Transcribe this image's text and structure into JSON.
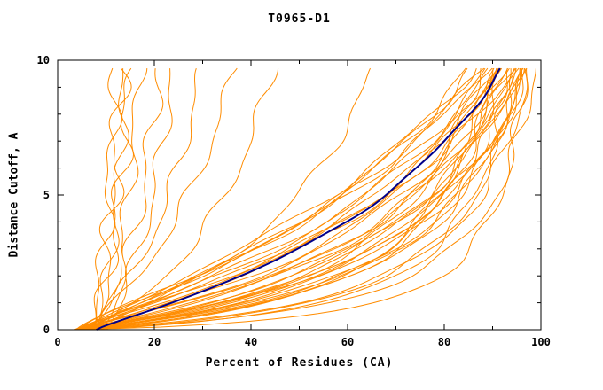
{
  "chart_data": {
    "type": "line",
    "title": "T0965-D1",
    "xlabel": "Percent of Residues (CA)",
    "ylabel": "Distance Cutoff, A",
    "xlim": [
      0,
      100
    ],
    "ylim": [
      0,
      10
    ],
    "x_major_ticks": [
      0,
      20,
      40,
      60,
      80,
      100
    ],
    "x_minor_ticks": [
      10,
      30,
      50,
      70,
      90
    ],
    "y_major_ticks": [
      0,
      5,
      10
    ],
    "y_minor_ticks": [
      1,
      2,
      3,
      4,
      6,
      7,
      8,
      9
    ],
    "y_end": 9.7,
    "grid": false,
    "legend": "none",
    "colors": {
      "models": "#ff8c00",
      "highlight": "#00008b",
      "frame": "#000000",
      "background": "#ffffff"
    },
    "highlight_curve": {
      "x0": 8,
      "xmax": 93,
      "k": 5,
      "p": 1.23,
      "seed": 0,
      "w1": 0.3,
      "w2": 0.2
    },
    "model_curves": [
      {
        "x0": 4,
        "xmax": 97,
        "k": 0.9,
        "p": 0.75,
        "seed": 11
      },
      {
        "x0": 4,
        "xmax": 99,
        "k": 1.2,
        "p": 0.9,
        "seed": 12
      },
      {
        "x0": 5,
        "xmax": 98,
        "k": 1.5,
        "p": 0.95,
        "seed": 13
      },
      {
        "x0": 4,
        "xmax": 96,
        "k": 1.8,
        "p": 1.0,
        "seed": 14
      },
      {
        "x0": 5,
        "xmax": 97,
        "k": 2.0,
        "p": 1.05,
        "seed": 15
      },
      {
        "x0": 4,
        "xmax": 95,
        "k": 2.2,
        "p": 1.0,
        "seed": 16
      },
      {
        "x0": 5,
        "xmax": 96,
        "k": 2.5,
        "p": 1.1,
        "seed": 17
      },
      {
        "x0": 4,
        "xmax": 94,
        "k": 2.8,
        "p": 1.05,
        "seed": 18
      },
      {
        "x0": 5,
        "xmax": 95,
        "k": 3.0,
        "p": 1.1,
        "seed": 19
      },
      {
        "x0": 4,
        "xmax": 93,
        "k": 3.2,
        "p": 1.15,
        "seed": 20
      },
      {
        "x0": 5,
        "xmax": 94,
        "k": 3.5,
        "p": 1.1,
        "seed": 21
      },
      {
        "x0": 4,
        "xmax": 92,
        "k": 3.8,
        "p": 1.2,
        "seed": 22
      },
      {
        "x0": 5,
        "xmax": 93,
        "k": 4.0,
        "p": 1.15,
        "seed": 23
      },
      {
        "x0": 4,
        "xmax": 91,
        "k": 4.2,
        "p": 1.25,
        "seed": 24
      },
      {
        "x0": 5,
        "xmax": 92,
        "k": 4.5,
        "p": 1.2,
        "seed": 25
      },
      {
        "x0": 4,
        "xmax": 90,
        "k": 5.0,
        "p": 1.3,
        "seed": 26
      },
      {
        "x0": 5,
        "xmax": 91,
        "k": 5.5,
        "p": 1.25,
        "seed": 27
      },
      {
        "x0": 4,
        "xmax": 89,
        "k": 6.0,
        "p": 1.35,
        "seed": 28
      },
      {
        "x0": 5,
        "xmax": 90,
        "k": 2.0,
        "p": 0.9,
        "seed": 29
      },
      {
        "x0": 4,
        "xmax": 88,
        "k": 2.4,
        "p": 1.0,
        "seed": 30
      },
      {
        "x0": 5,
        "xmax": 96,
        "k": 1.6,
        "p": 0.85,
        "seed": 31
      },
      {
        "x0": 4,
        "xmax": 97,
        "k": 2.1,
        "p": 1.0,
        "seed": 32
      },
      {
        "x0": 5,
        "xmax": 98,
        "k": 2.7,
        "p": 1.1,
        "seed": 33
      },
      {
        "x0": 4,
        "xmax": 95,
        "k": 3.3,
        "p": 1.2,
        "seed": 34
      },
      {
        "x0": 5,
        "xmax": 94,
        "k": 1.4,
        "p": 0.8,
        "seed": 35
      },
      {
        "x0": 4,
        "xmax": 96,
        "k": 4.8,
        "p": 1.3,
        "seed": 36
      },
      {
        "x0": 5,
        "xmax": 97,
        "k": 3.6,
        "p": 1.05,
        "seed": 37
      },
      {
        "x0": 4,
        "xmax": 98,
        "k": 2.9,
        "p": 0.95,
        "seed": 38
      },
      {
        "x0": 5,
        "xmax": 93,
        "k": 2.3,
        "p": 1.05,
        "seed": 39
      },
      {
        "x0": 4,
        "xmax": 92,
        "k": 5.2,
        "p": 1.2,
        "seed": 40
      },
      {
        "x0": 5,
        "xmax": 91,
        "k": 1.9,
        "p": 0.9,
        "seed": 41
      },
      {
        "x0": 4,
        "xmax": 90,
        "k": 6.5,
        "p": 1.3,
        "seed": 42
      },
      {
        "x0": 6,
        "xmax": 88,
        "k": 7.0,
        "p": 1.4,
        "seed": 43
      },
      {
        "x0": 6,
        "xmax": 87,
        "k": 6.2,
        "p": 1.35,
        "seed": 44
      },
      {
        "x0": 5,
        "xmax": 86,
        "k": 5.8,
        "p": 1.3,
        "seed": 45
      },
      {
        "x0": 7,
        "xmax": 12,
        "k": 9,
        "p": 0.9,
        "seed": 1,
        "w1": 1.2,
        "w2": 0.7
      },
      {
        "x0": 8,
        "xmax": 14,
        "k": 8,
        "p": 0.95,
        "seed": 2,
        "w1": 1.0,
        "w2": 0.6
      },
      {
        "x0": 7,
        "xmax": 15,
        "k": 10,
        "p": 0.85,
        "seed": 3,
        "w1": 1.4,
        "w2": 0.8
      },
      {
        "x0": 9,
        "xmax": 17,
        "k": 7,
        "p": 1.0,
        "seed": 4,
        "w1": 1.1,
        "w2": 0.5
      },
      {
        "x0": 8,
        "xmax": 13,
        "k": 12,
        "p": 0.8,
        "seed": 5,
        "w1": 1.6,
        "w2": 0.9
      },
      {
        "x0": 9,
        "xmax": 21,
        "k": 9,
        "p": 0.9,
        "seed": 6,
        "w1": 1.2,
        "w2": 0.6
      },
      {
        "x0": 10,
        "xmax": 24,
        "k": 8,
        "p": 1.0,
        "seed": 7,
        "w1": 1.0,
        "w2": 0.5
      },
      {
        "x0": 6,
        "xmax": 30,
        "k": 7,
        "p": 1.0,
        "seed": 8
      },
      {
        "x0": 6,
        "xmax": 37,
        "k": 8,
        "p": 1.05,
        "seed": 9
      },
      {
        "x0": 7,
        "xmax": 45,
        "k": 6,
        "p": 1.0,
        "seed": 10
      },
      {
        "x0": 6,
        "xmax": 66,
        "k": 5,
        "p": 1.1,
        "seed": 46
      }
    ]
  }
}
